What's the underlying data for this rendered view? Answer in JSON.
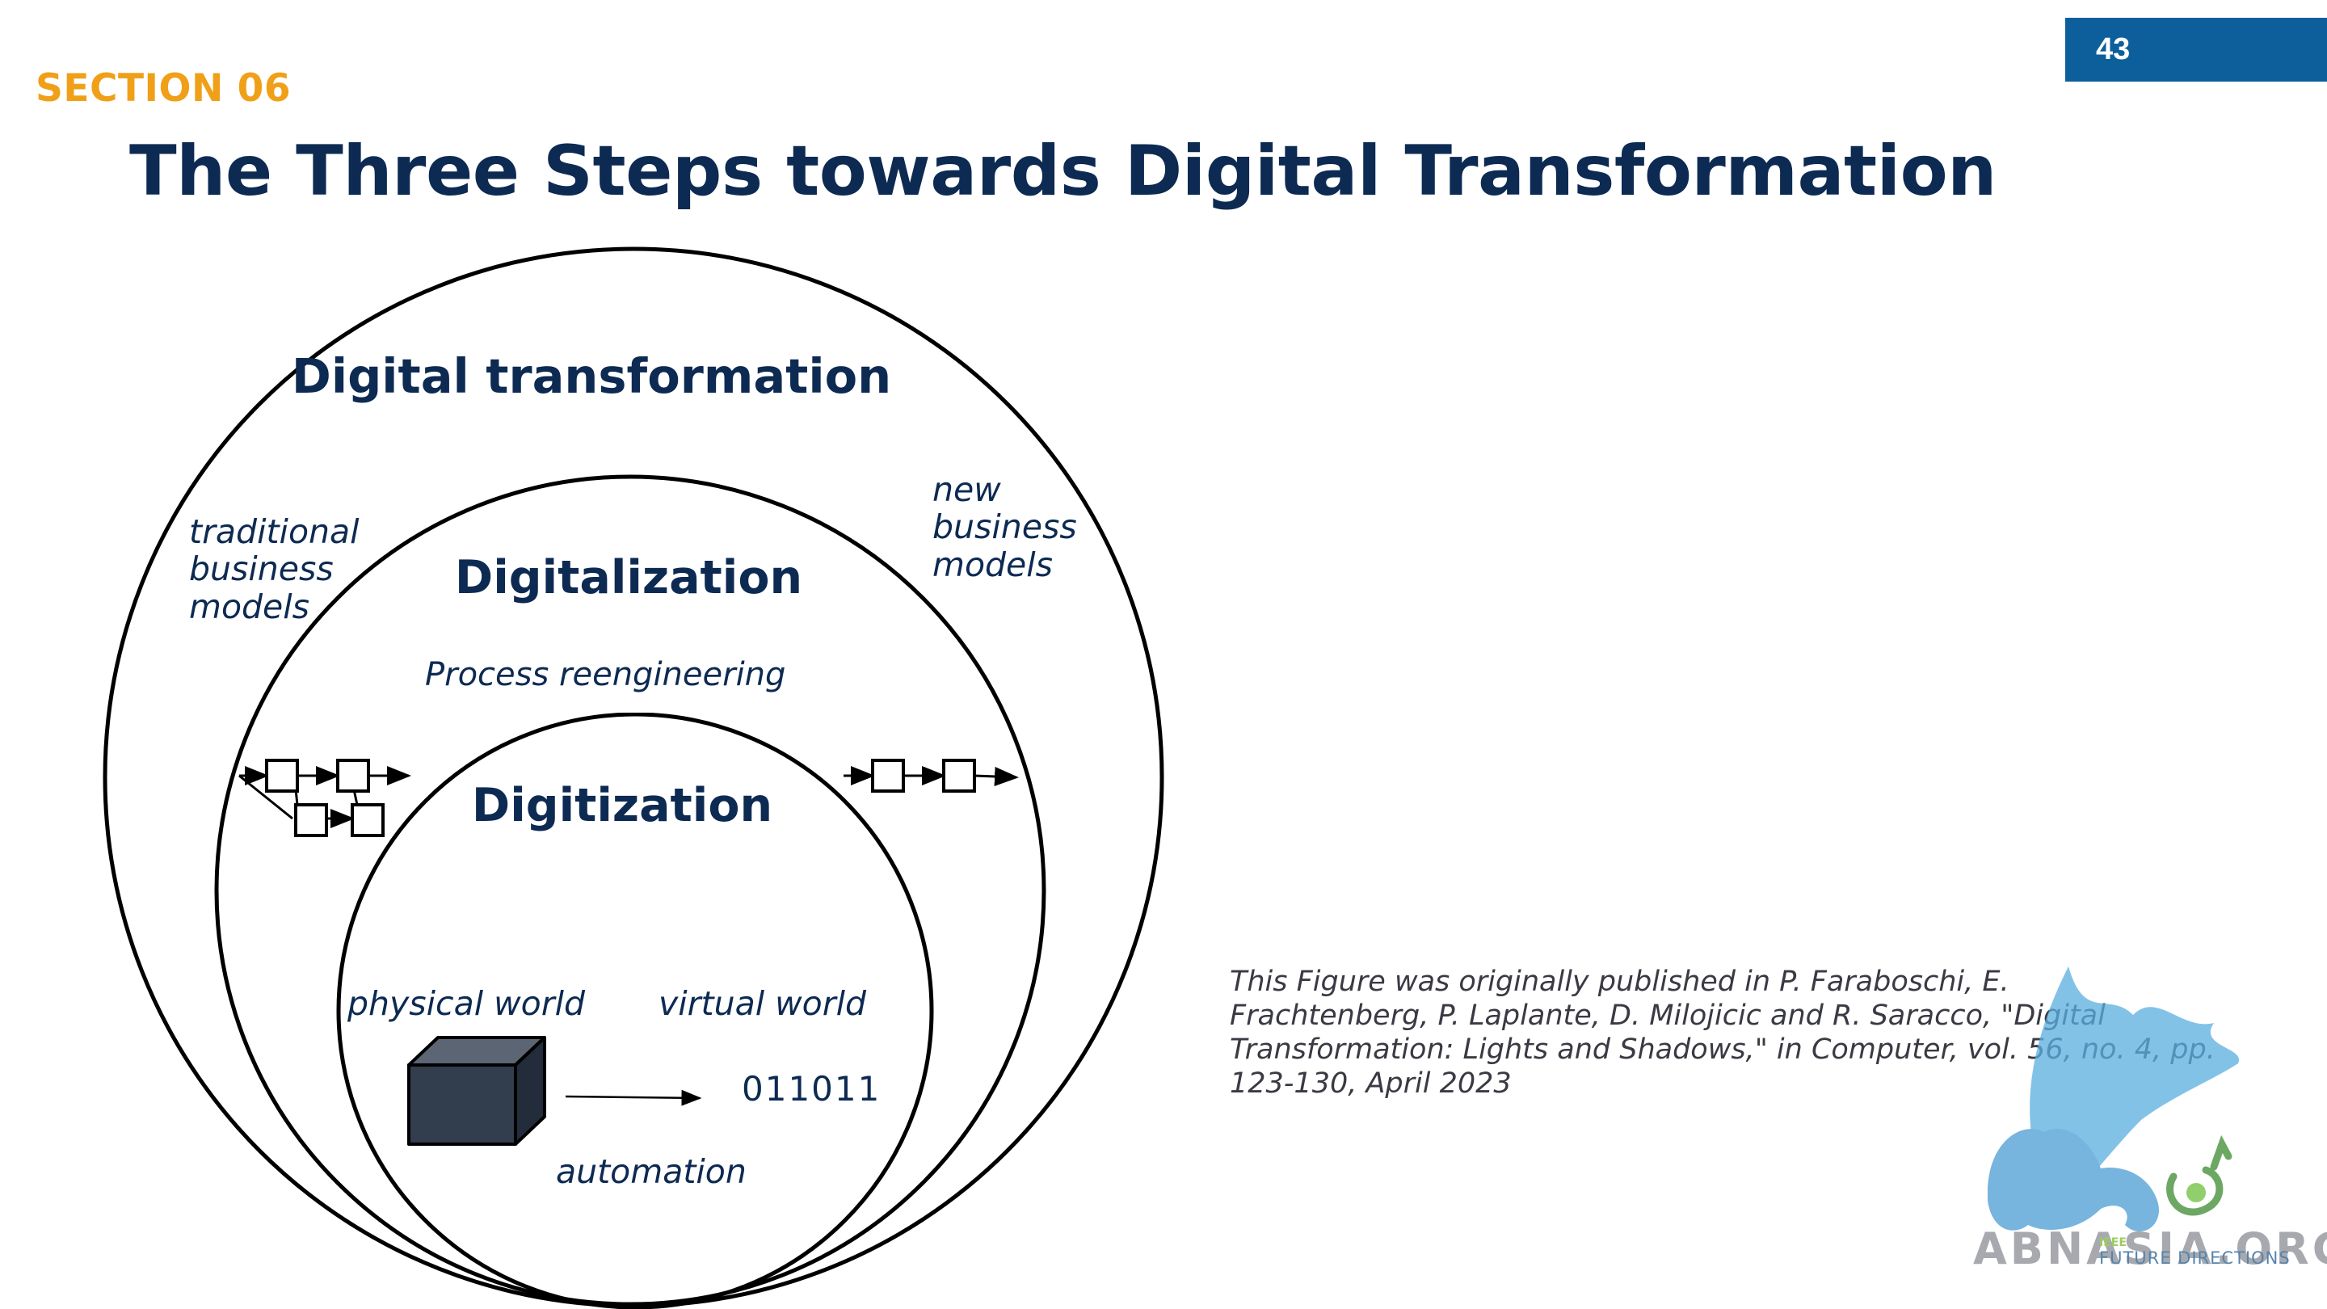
{
  "page_number": "43",
  "section": "SECTION 06",
  "title": "The Three Steps towards Digital Transformation",
  "diagram": {
    "outer_label": "Digital transformation",
    "middle_label": "Digitalization",
    "inner_label": "Digitization",
    "process_label": "Process reengineering",
    "traditional_models": [
      "traditional",
      "business",
      "models"
    ],
    "new_models": [
      "new",
      "business",
      "models"
    ],
    "physical_world": "physical world",
    "virtual_world": "virtual world",
    "binary": "011011",
    "automation": "automation"
  },
  "citation": "This Figure was originally published in P. Faraboschi, E. Frachtenberg, P. Laplante, D. Milojicic and R. Saracco, \"Digital Transformation: Lights and Shadows,\" in Computer, vol. 56, no. 4, pp. 123-130, April 2023",
  "watermark": {
    "text": "ABNASIA.ORG",
    "badge_top": "IEEE",
    "badge_bottom": "FUTURE DIRECTIONS"
  },
  "colors": {
    "title": "#0d2a52",
    "section": "#f0a018",
    "page_tab": "#0c5f9b",
    "cube": "#323d4d"
  }
}
